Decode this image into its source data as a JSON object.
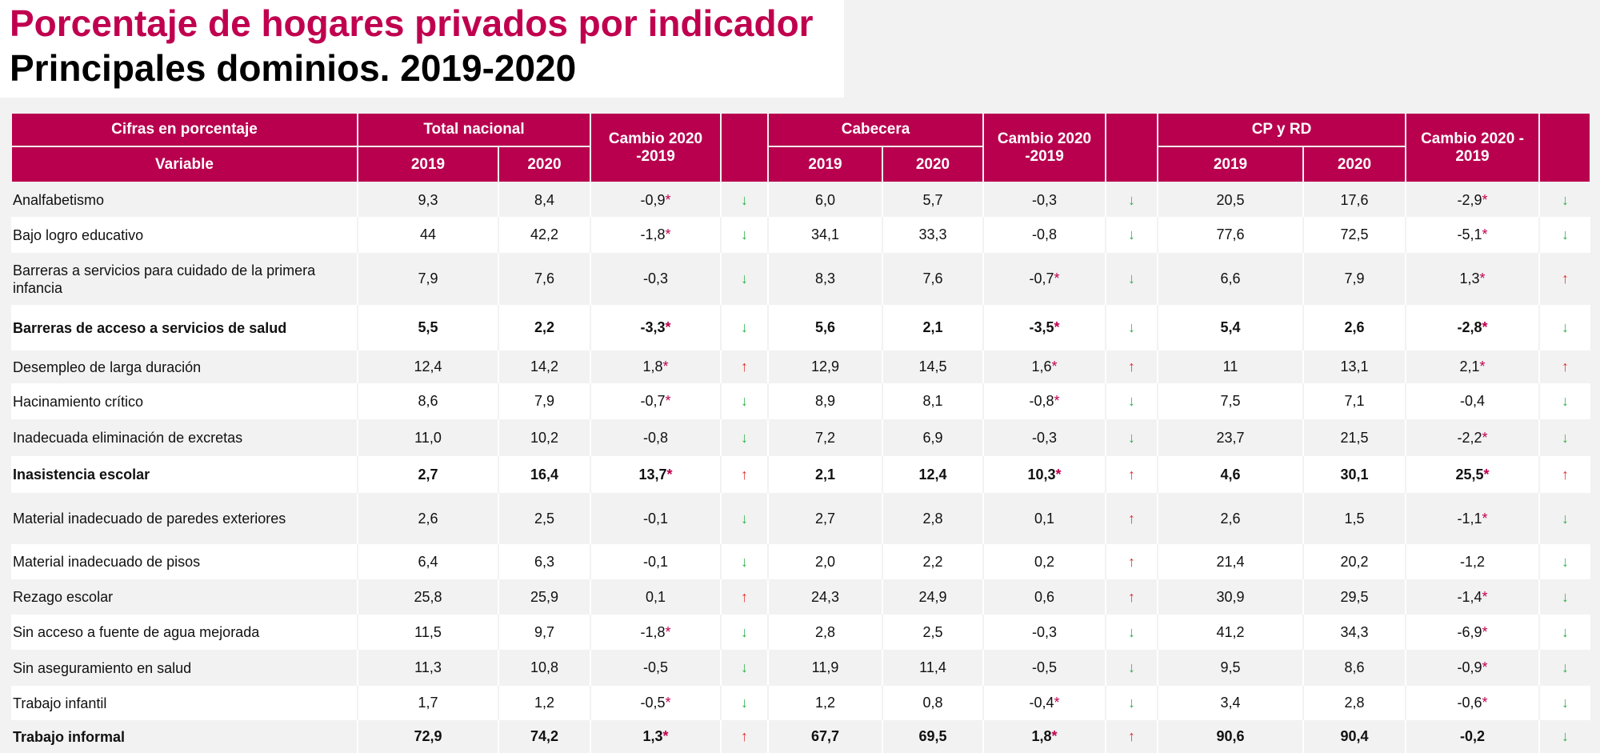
{
  "title": "Porcentaje de hogares privados por indicador",
  "subtitle": "Principales dominios. 2019-2020",
  "header": {
    "cifras": "Cifras en porcentaje",
    "variable": "Variable",
    "total_nacional": "Total nacional",
    "cabecera": "Cabecera",
    "cpyrd": "CP y RD",
    "cambio1": "Cambio 2020 -2019",
    "cambio2": "Cambio 2020 -2019",
    "cambio3": "Cambio  2020 - 2019",
    "y2019": "2019",
    "y2020": "2020"
  },
  "rows": [
    {
      "variable": "Analfabetismo",
      "bold": false,
      "cells": [
        "9,3",
        "8,4",
        "-0,9*",
        "down",
        "6,0",
        "5,7",
        "-0,3",
        "down",
        "20,5",
        "17,6",
        "-2,9*",
        "down"
      ]
    },
    {
      "variable": "Bajo logro educativo",
      "bold": false,
      "cells": [
        "44",
        "42,2",
        "-1,8*",
        "down",
        "34,1",
        "33,3",
        "-0,8",
        "down",
        "77,6",
        "72,5",
        "-5,1*",
        "down"
      ]
    },
    {
      "variable": "Barreras a servicios para cuidado de la primera infancia",
      "bold": false,
      "cells": [
        "7,9",
        "7,6",
        "-0,3",
        "down",
        "8,3",
        "7,6",
        "-0,7*",
        "down",
        "6,6",
        "7,9",
        "1,3*",
        "up"
      ]
    },
    {
      "variable": "Barreras de acceso a servicios de salud",
      "bold": true,
      "cells": [
        "5,5",
        "2,2",
        "-3,3*",
        "down",
        "5,6",
        "2,1",
        "-3,5*",
        "down",
        "5,4",
        "2,6",
        "-2,8*",
        "down"
      ]
    },
    {
      "variable": "Desempleo de larga duración",
      "bold": false,
      "cells": [
        "12,4",
        "14,2",
        "1,8*",
        "up",
        "12,9",
        "14,5",
        "1,6*",
        "up",
        "11",
        "13,1",
        "2,1*",
        "up"
      ]
    },
    {
      "variable": "Hacinamiento crítico",
      "bold": false,
      "cells": [
        "8,6",
        "7,9",
        "-0,7*",
        "down",
        "8,9",
        "8,1",
        "-0,8*",
        "down",
        "7,5",
        "7,1",
        "-0,4",
        "down"
      ]
    },
    {
      "variable": "Inadecuada eliminación de excretas",
      "bold": false,
      "cells": [
        "11,0",
        "10,2",
        "-0,8",
        "down",
        "7,2",
        "6,9",
        "-0,3",
        "down",
        "23,7",
        "21,5",
        "-2,2*",
        "down"
      ]
    },
    {
      "variable": "Inasistencia escolar",
      "bold": true,
      "cells": [
        "2,7",
        "16,4",
        "13,7*",
        "up",
        "2,1",
        "12,4",
        "10,3*",
        "up",
        "4,6",
        "30,1",
        "25,5*",
        "up"
      ]
    },
    {
      "variable": "Material inadecuado de paredes exteriores",
      "bold": false,
      "cells": [
        "2,6",
        "2,5",
        "-0,1",
        "down",
        "2,7",
        "2,8",
        "0,1",
        "up",
        "2,6",
        "1,5",
        "-1,1*",
        "down"
      ]
    },
    {
      "variable": "Material inadecuado de pisos",
      "bold": false,
      "cells": [
        "6,4",
        "6,3",
        "-0,1",
        "down",
        "2,0",
        "2,2",
        "0,2",
        "up",
        "21,4",
        "20,2",
        "-1,2",
        "down"
      ]
    },
    {
      "variable": "Rezago escolar",
      "bold": false,
      "cells": [
        "25,8",
        "25,9",
        "0,1",
        "up",
        "24,3",
        "24,9",
        "0,6",
        "up",
        "30,9",
        "29,5",
        "-1,4*",
        "down"
      ]
    },
    {
      "variable": "Sin acceso a fuente de agua mejorada",
      "bold": false,
      "cells": [
        "11,5",
        "9,7",
        "-1,8*",
        "down",
        "2,8",
        "2,5",
        "-0,3",
        "down",
        "41,2",
        "34,3",
        "-6,9*",
        "down"
      ]
    },
    {
      "variable": "Sin aseguramiento en salud",
      "bold": false,
      "cells": [
        "11,3",
        "10,8",
        "-0,5",
        "down",
        "11,9",
        "11,4",
        "-0,5",
        "down",
        "9,5",
        "8,6",
        "-0,9*",
        "down"
      ]
    },
    {
      "variable": "Trabajo infantil",
      "bold": false,
      "cells": [
        "1,7",
        "1,2",
        "-0,5*",
        "down",
        "1,2",
        "0,8",
        "-0,4*",
        "down",
        "3,4",
        "2,8",
        "-0,6*",
        "down"
      ]
    },
    {
      "variable": "Trabajo informal",
      "bold": true,
      "cells": [
        "72,9",
        "74,2",
        "1,3*",
        "up",
        "67,7",
        "69,5",
        "1,8*",
        "up",
        "90,6",
        "90,4",
        "-0,2",
        "down"
      ]
    }
  ],
  "colors": {
    "header": "#b8004e",
    "title": "#c0004f",
    "up": "#e0302e",
    "down": "#2fb04a"
  }
}
